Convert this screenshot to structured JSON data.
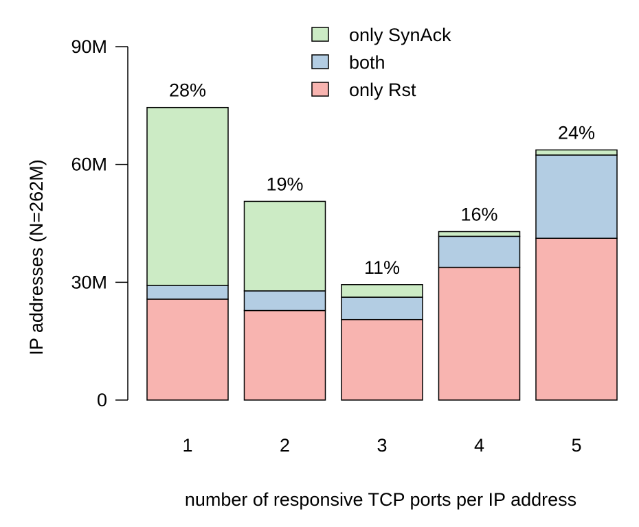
{
  "chart_data": {
    "type": "bar",
    "stacked": true,
    "categories": [
      "1",
      "2",
      "3",
      "4",
      "5"
    ],
    "series": [
      {
        "name": "only Rst",
        "color": "#f8b4b0",
        "values": [
          25.7,
          22.8,
          20.5,
          33.8,
          41.2
        ]
      },
      {
        "name": "both",
        "color": "#b3cde3",
        "values": [
          3.5,
          5.0,
          5.7,
          7.9,
          21.2
        ]
      },
      {
        "name": "only SynAck",
        "color": "#ccebc5",
        "values": [
          45.3,
          22.8,
          3.2,
          1.2,
          1.3
        ]
      }
    ],
    "bar_labels": [
      "28%",
      "19%",
      "11%",
      "16%",
      "24%"
    ],
    "xlabel": "number of responsive TCP ports per IP address",
    "ylabel": "IP addresses (N=262M)",
    "ylim": [
      0,
      90
    ],
    "yticks": [
      0,
      30,
      60,
      90
    ],
    "ytick_labels": [
      "0",
      "30M",
      "60M",
      "90M"
    ],
    "grid": false,
    "legend_position": "top-center"
  }
}
